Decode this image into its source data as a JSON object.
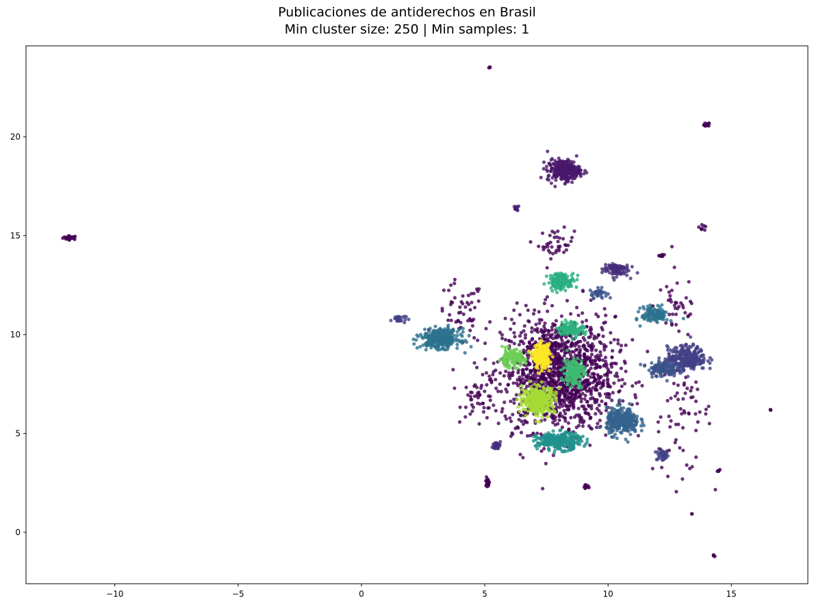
{
  "chart_data": {
    "type": "scatter",
    "title": "Publicaciones de antiderechos en Brasil",
    "subtitle": "Min cluster size: 250 | Min samples: 1",
    "xlabel": "",
    "ylabel": "",
    "xlim": [
      -13.6,
      18.1
    ],
    "ylim": [
      -2.6,
      24.6
    ],
    "xticks": [
      -10,
      -5,
      0,
      5,
      10,
      15
    ],
    "xtick_labels": [
      "−10",
      "−5",
      "0",
      "5",
      "10",
      "15"
    ],
    "yticks": [
      0,
      5,
      10,
      15,
      20
    ],
    "ytick_labels": [
      "0",
      "5",
      "10",
      "15",
      "20"
    ],
    "grid": false,
    "legend": "none",
    "colormap": "viridis",
    "clusters": [
      {
        "label": -1,
        "color": "#440154",
        "center": [
          8.0,
          8.0
        ],
        "spread": [
          1.9,
          2.4
        ],
        "count": 1400
      },
      {
        "label": 0,
        "color": "#48186a",
        "center": [
          8.2,
          18.3
        ],
        "spread": [
          0.55,
          0.45
        ],
        "count": 260
      },
      {
        "label": 1,
        "color": "#472d7b",
        "center": [
          10.3,
          13.3
        ],
        "spread": [
          0.45,
          0.3
        ],
        "count": 90
      },
      {
        "label": 2,
        "color": "#424086",
        "center": [
          13.2,
          8.8
        ],
        "spread": [
          0.65,
          0.5
        ],
        "count": 260
      },
      {
        "label": 3,
        "color": "#3b528b",
        "center": [
          12.2,
          8.3
        ],
        "spread": [
          0.5,
          0.35
        ],
        "count": 130
      },
      {
        "label": 4,
        "color": "#33638d",
        "center": [
          10.6,
          5.6
        ],
        "spread": [
          0.55,
          0.55
        ],
        "count": 300
      },
      {
        "label": 5,
        "color": "#2c728e",
        "center": [
          3.2,
          9.8
        ],
        "spread": [
          0.65,
          0.4
        ],
        "count": 320
      },
      {
        "label": 6,
        "color": "#2c728e",
        "center": [
          11.9,
          11.0
        ],
        "spread": [
          0.45,
          0.35
        ],
        "count": 120
      },
      {
        "label": 7,
        "color": "#21918c",
        "center": [
          8.0,
          4.6
        ],
        "spread": [
          0.75,
          0.35
        ],
        "count": 280
      },
      {
        "label": 8,
        "color": "#28ae80",
        "center": [
          8.1,
          12.7
        ],
        "spread": [
          0.45,
          0.35
        ],
        "count": 120
      },
      {
        "label": 9,
        "color": "#2db27d",
        "center": [
          8.5,
          10.3
        ],
        "spread": [
          0.45,
          0.3
        ],
        "count": 110
      },
      {
        "label": 10,
        "color": "#3fbc73",
        "center": [
          8.6,
          8.1
        ],
        "spread": [
          0.35,
          0.6
        ],
        "count": 160
      },
      {
        "label": 11,
        "color": "#6ece58",
        "center": [
          6.1,
          8.8
        ],
        "spread": [
          0.45,
          0.35
        ],
        "count": 130
      },
      {
        "label": 12,
        "color": "#a5db36",
        "center": [
          7.2,
          6.7
        ],
        "spread": [
          0.55,
          0.55
        ],
        "count": 330
      },
      {
        "label": 13,
        "color": "#fde725",
        "center": [
          7.3,
          8.9
        ],
        "spread": [
          0.28,
          0.5
        ],
        "count": 220
      }
    ],
    "outlier_groups": [
      {
        "color": "#440154",
        "center": [
          -11.8,
          14.9
        ],
        "spread": [
          0.25,
          0.08
        ],
        "count": 30
      },
      {
        "color": "#440154",
        "center": [
          5.2,
          23.5
        ],
        "spread": [
          0.03,
          0.03
        ],
        "count": 4
      },
      {
        "color": "#440154",
        "center": [
          14.0,
          20.6
        ],
        "spread": [
          0.1,
          0.1
        ],
        "count": 12
      },
      {
        "color": "#48186a",
        "center": [
          6.3,
          16.4
        ],
        "spread": [
          0.08,
          0.1
        ],
        "count": 10
      },
      {
        "color": "#440154",
        "center": [
          5.1,
          2.5
        ],
        "spread": [
          0.08,
          0.2
        ],
        "count": 20
      },
      {
        "color": "#440154",
        "center": [
          9.1,
          2.3
        ],
        "spread": [
          0.1,
          0.1
        ],
        "count": 14
      },
      {
        "color": "#440154",
        "center": [
          14.3,
          -1.2
        ],
        "spread": [
          0.05,
          0.05
        ],
        "count": 5
      },
      {
        "color": "#440154",
        "center": [
          16.6,
          6.2
        ],
        "spread": [
          0.02,
          0.03
        ],
        "count": 3
      },
      {
        "color": "#424086",
        "center": [
          12.2,
          3.9
        ],
        "spread": [
          0.2,
          0.25
        ],
        "count": 40
      },
      {
        "color": "#472d7b",
        "center": [
          5.5,
          4.4
        ],
        "spread": [
          0.15,
          0.2
        ],
        "count": 30
      },
      {
        "color": "#3b528b",
        "center": [
          9.6,
          12.1
        ],
        "spread": [
          0.3,
          0.2
        ],
        "count": 40
      },
      {
        "color": "#424086",
        "center": [
          1.5,
          10.8
        ],
        "spread": [
          0.25,
          0.2
        ],
        "count": 25
      },
      {
        "color": "#440154",
        "center": [
          7.9,
          14.6
        ],
        "spread": [
          0.6,
          0.6
        ],
        "count": 40
      },
      {
        "color": "#440154",
        "center": [
          13.0,
          6.0
        ],
        "spread": [
          1.0,
          2.5
        ],
        "count": 70
      },
      {
        "color": "#440154",
        "center": [
          12.8,
          11.5
        ],
        "spread": [
          0.8,
          1.5
        ],
        "count": 40
      },
      {
        "color": "#440154",
        "center": [
          4.0,
          11.0
        ],
        "spread": [
          0.8,
          1.4
        ],
        "count": 50
      },
      {
        "color": "#440154",
        "center": [
          4.8,
          6.8
        ],
        "spread": [
          0.6,
          0.8
        ],
        "count": 40
      },
      {
        "color": "#440154",
        "center": [
          13.8,
          15.5
        ],
        "spread": [
          0.2,
          0.2
        ],
        "count": 8
      },
      {
        "color": "#440154",
        "center": [
          12.2,
          14.0
        ],
        "spread": [
          0.1,
          0.05
        ],
        "count": 8
      },
      {
        "color": "#440154",
        "center": [
          14.5,
          3.1
        ],
        "spread": [
          0.1,
          0.05
        ],
        "count": 6
      },
      {
        "color": "#440154",
        "center": [
          13.4,
          0.95
        ],
        "spread": [
          0.02,
          0.02
        ],
        "count": 2
      }
    ]
  }
}
